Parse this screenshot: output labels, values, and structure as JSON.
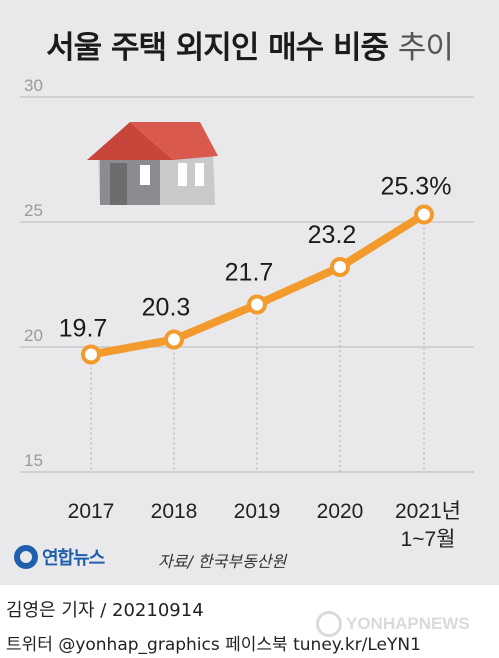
{
  "title": {
    "main": "서울 주택 외지인 매수 비중",
    "suffix": "추이"
  },
  "chart_data": {
    "type": "line",
    "title": "서울 주택 외지인 매수 비중 추이",
    "categories": [
      "2017",
      "2018",
      "2019",
      "2020",
      "2021년\n1~7월"
    ],
    "values": [
      19.7,
      20.3,
      21.7,
      23.2,
      25.3
    ],
    "data_labels": [
      "19.7",
      "20.3",
      "21.7",
      "23.2",
      "25.3%"
    ],
    "yticks": [
      "30",
      "25",
      "20",
      "15"
    ],
    "ylim": [
      15,
      30
    ],
    "grid": true,
    "line_color": "#f39a2c"
  },
  "source": "자료/ 한국부동산원",
  "brand": {
    "logo_text": "연합뉴스"
  },
  "credit": {
    "reporter": "김영은 기자 / 20210914",
    "social": "트위터 @yonhap_graphics  페이스북 tuney.kr/LeYN1"
  },
  "watermark": "YONHAPNEWS"
}
